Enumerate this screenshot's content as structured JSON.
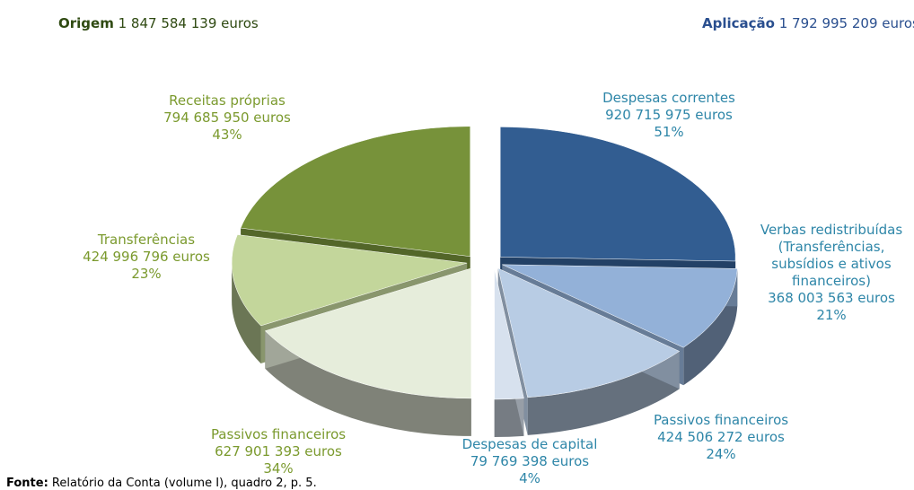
{
  "source": {
    "label": "Fonte:",
    "text": "Relatório da Conta (volume I), quadro 2, p. 5."
  },
  "chart_data": [
    {
      "type": "pie",
      "title": "Origem",
      "total": "1 847 584 139 euros",
      "labels": [
        "Passivos financeiros",
        "Transferências",
        "Receitas próprias"
      ],
      "amount_labels": [
        "627 901 393 euros",
        "424 996 796 euros",
        "794 685 950 euros"
      ],
      "values": [
        34,
        23,
        43
      ],
      "value_labels": [
        "34%",
        "23%",
        "43%"
      ],
      "colors": [
        "#e6eddb",
        "#c3d69b",
        "#77923a"
      ]
    },
    {
      "type": "pie",
      "title": "Aplicação",
      "total": "1 792 995 209 euros",
      "labels": [
        "Despesas correntes",
        "Verbas redistribuídas (Transferências, subsídios e ativos financeiros)",
        "Passivos financeiros",
        "Despesas de capital"
      ],
      "amount_labels": [
        "920 715 975 euros",
        "368 003 563 euros",
        "424 506 272 euros",
        "79 769 398 euros"
      ],
      "values": [
        51,
        21,
        24,
        4
      ],
      "value_labels": [
        "51%",
        "21%",
        "24%",
        "4%"
      ],
      "colors": [
        "#325d91",
        "#93b1d8",
        "#b8cce4",
        "#d7e1ee"
      ]
    }
  ]
}
